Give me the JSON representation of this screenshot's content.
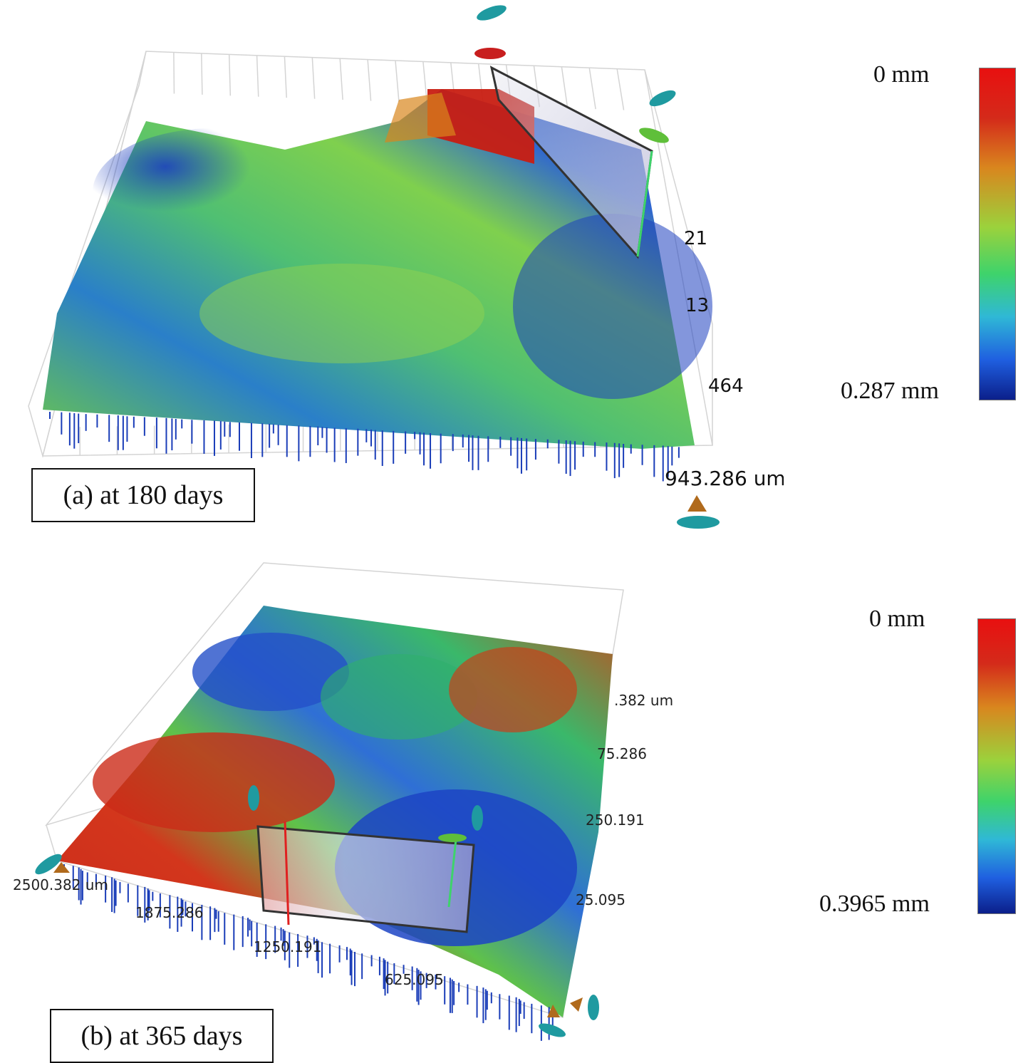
{
  "panels": [
    {
      "caption": "(a) at 180 days",
      "colorbar": {
        "top_label": "0 mm",
        "bottom_label": "0.287 mm"
      },
      "axis_labels": [
        "21",
        "13",
        "464",
        "943.286 um"
      ]
    },
    {
      "caption": "(b) at 365 days",
      "colorbar": {
        "top_label": "0 mm",
        "bottom_label": "0.3965 mm"
      },
      "axis_labels_right": [
        ".382 um",
        "75.286",
        "250.191",
        "25.095"
      ],
      "axis_labels_bottom": [
        "2500.382 um",
        "1875.286",
        "1250.191",
        "625.095"
      ]
    }
  ],
  "colorbar_gradient": [
    "#0b1f8a",
    "#1f5fe0",
    "#2fb8d6",
    "#3ed36b",
    "#9bd23c",
    "#d9861e",
    "#d42a1a",
    "#e81010"
  ],
  "icons": [
    "rotate-handle-icon"
  ]
}
